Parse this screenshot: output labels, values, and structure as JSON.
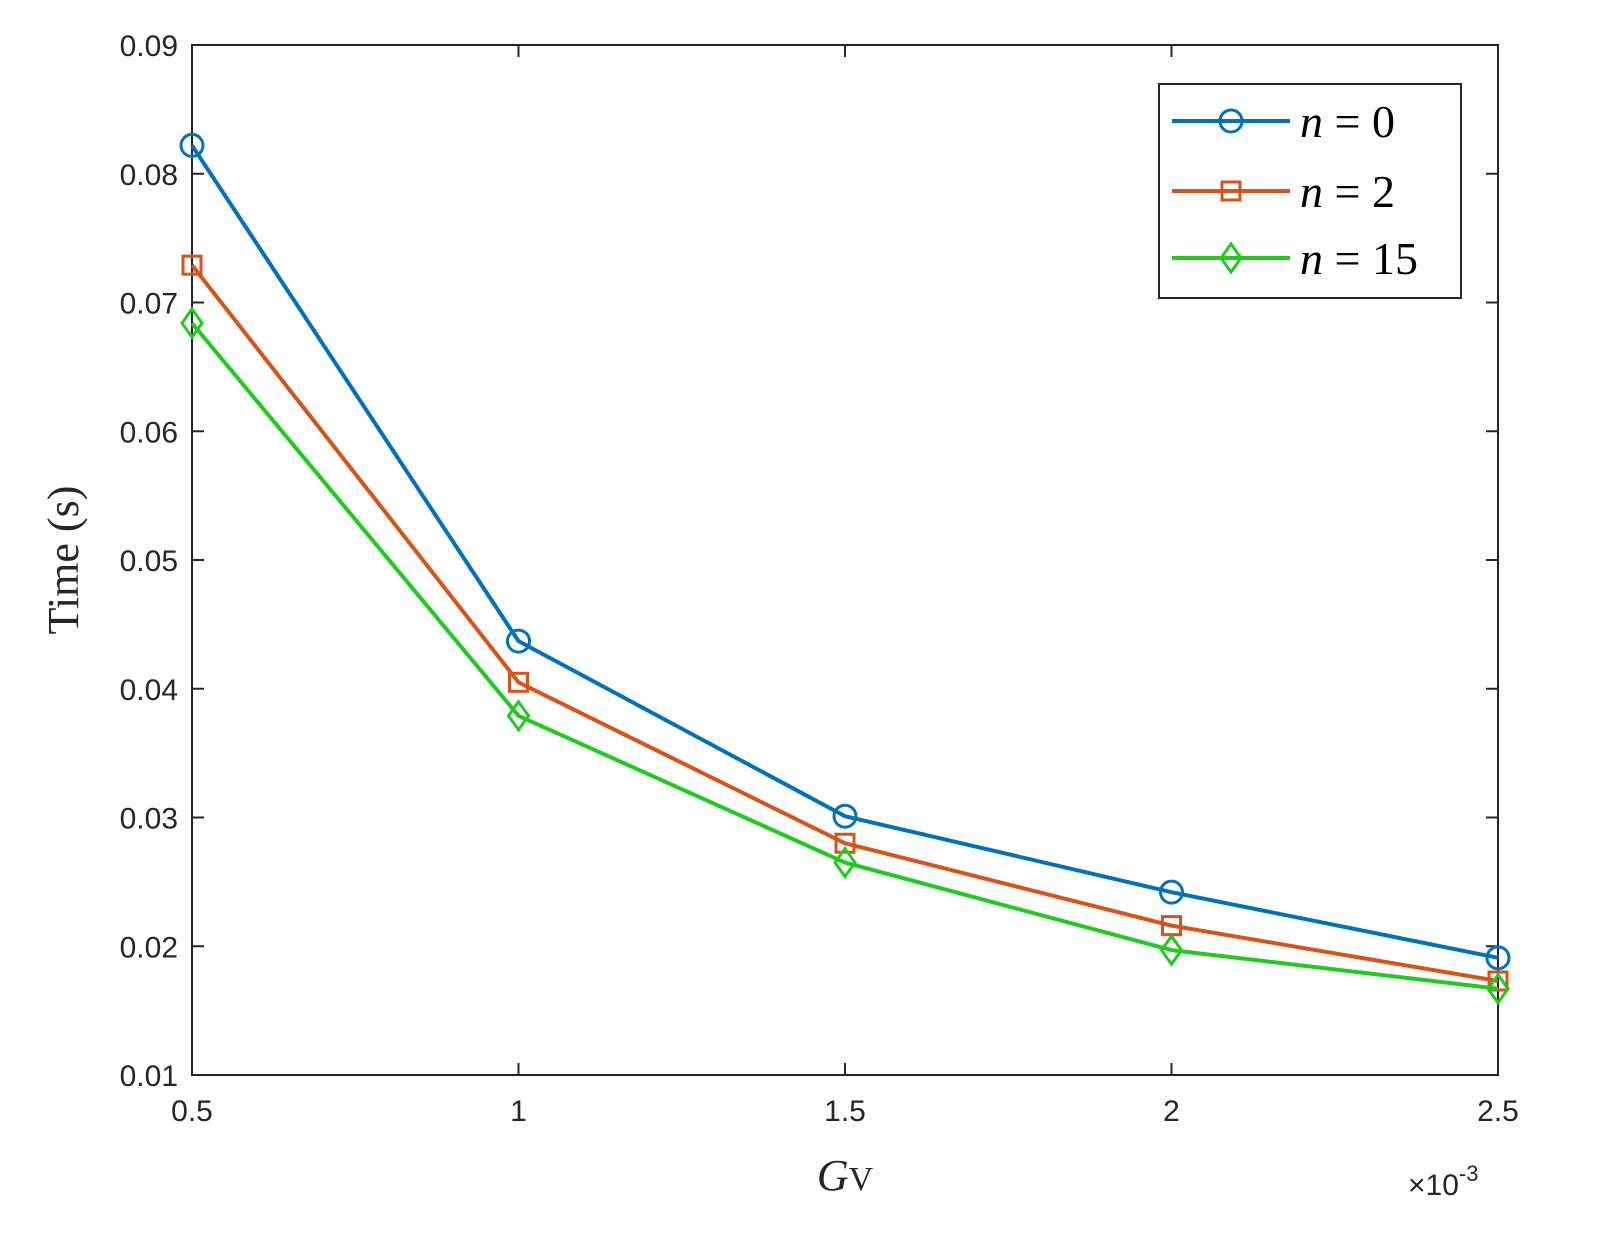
{
  "chart_data": {
    "type": "line",
    "x": [
      0.5,
      1,
      1.5,
      2,
      2.5
    ],
    "x_multiplier_label": "×10",
    "x_multiplier_exponent": "-3",
    "xlabel": {
      "italic": "G",
      "sub": "V"
    },
    "ylabel": "Time (s)",
    "xlim": [
      0.5,
      2.5
    ],
    "ylim": [
      0.01,
      0.09
    ],
    "xticks": [
      "0.5",
      "1",
      "1.5",
      "2",
      "2.5"
    ],
    "yticks": [
      "0.01",
      "0.02",
      "0.03",
      "0.04",
      "0.05",
      "0.06",
      "0.07",
      "0.08",
      "0.09"
    ],
    "grid": false,
    "legend_position": "top-right",
    "series": [
      {
        "name": "n = 0",
        "name_var": "n",
        "name_rest": " = 0",
        "color": "#0072BD",
        "marker": "circle",
        "values": [
          0.0822,
          0.0437,
          0.0301,
          0.0242,
          0.0191
        ]
      },
      {
        "name": "n = 2",
        "name_var": "n",
        "name_rest": " = 2",
        "color": "#D95319",
        "marker": "square",
        "values": [
          0.0729,
          0.0405,
          0.028,
          0.0216,
          0.0173
        ]
      },
      {
        "name": "n = 15",
        "name_var": "n",
        "name_rest": " = 15",
        "color": "#1ECC1E",
        "marker": "diamond",
        "values": [
          0.0684,
          0.0379,
          0.0265,
          0.0197,
          0.0167
        ]
      }
    ]
  }
}
